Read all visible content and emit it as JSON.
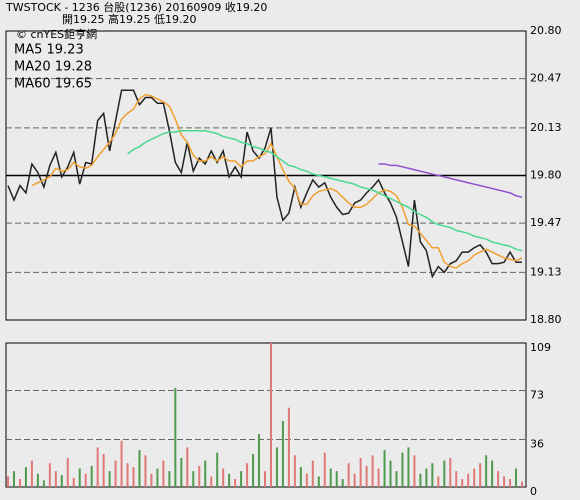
{
  "chart_data": [
    {
      "type": "line",
      "title": "TWSTOCK - 1236 台股(1236) 20160909 收19.20",
      "subtitle": "開19.25 高19.25 低19.20",
      "annotation": "© cnYES鉅亨網",
      "ylim": [
        18.8,
        20.8
      ],
      "yticks": [
        {
          "value": 20.8,
          "label": "20.80"
        },
        20.47,
        20.13,
        {
          "value": 19.8,
          "label": "19.80"
        },
        19.47,
        19.13,
        {
          "value": 18.8,
          "label": "18.80"
        }
      ],
      "solid_grid_tick": 3,
      "series": [
        {
          "color": "#222222",
          "values": [
            19.73,
            19.63,
            19.73,
            19.68,
            19.88,
            19.82,
            19.72,
            19.87,
            19.96,
            19.79,
            19.86,
            19.96,
            19.74,
            19.89,
            19.88,
            20.18,
            20.23,
            19.97,
            20.18,
            20.39,
            20.39,
            20.39,
            20.29,
            20.34,
            20.34,
            20.3,
            20.3,
            20.11,
            19.89,
            19.82,
            20.03,
            19.83,
            19.92,
            19.88,
            19.97,
            19.89,
            19.97,
            19.79,
            19.86,
            19.79,
            20.1,
            19.97,
            19.92,
            19.99,
            20.13,
            19.65,
            19.49,
            19.54,
            19.72,
            19.58,
            19.68,
            19.77,
            19.72,
            19.75,
            19.65,
            19.58,
            19.53,
            19.54,
            19.61,
            19.63,
            19.68,
            19.72,
            19.77,
            19.68,
            19.61,
            19.51,
            19.34,
            19.17,
            19.63,
            19.34,
            19.28,
            19.1,
            19.17,
            19.13,
            19.19,
            19.21,
            19.27,
            19.27,
            19.3,
            19.32,
            19.27,
            19.19,
            19.19,
            19.2,
            19.27,
            19.2,
            19.2
          ]
        },
        {
          "name": "MA5 19.23",
          "color": "#f0a030",
          "values": [
            null,
            null,
            null,
            null,
            19.73,
            19.75,
            19.77,
            19.79,
            19.85,
            19.83,
            19.84,
            19.89,
            19.86,
            19.85,
            19.87,
            19.93,
            19.98,
            20.03,
            20.09,
            20.19,
            20.23,
            20.26,
            20.33,
            20.36,
            20.35,
            20.33,
            20.31,
            20.28,
            20.19,
            20.08,
            20.03,
            19.94,
            19.9,
            19.9,
            19.93,
            19.9,
            19.93,
            19.9,
            19.9,
            19.86,
            19.9,
            19.9,
            19.93,
            19.95,
            20.02,
            19.93,
            19.84,
            19.76,
            19.71,
            19.6,
            19.6,
            19.66,
            19.69,
            19.7,
            19.71,
            19.69,
            19.65,
            19.61,
            19.58,
            19.58,
            19.6,
            19.64,
            19.68,
            19.7,
            19.69,
            19.66,
            19.58,
            19.46,
            19.45,
            19.4,
            19.35,
            19.3,
            19.3,
            19.2,
            19.17,
            19.16,
            19.19,
            19.21,
            19.25,
            19.27,
            19.29,
            19.27,
            19.25,
            19.23,
            19.22,
            19.21,
            19.23
          ]
        },
        {
          "name": "MA20 19.28",
          "color": "#48d890",
          "values": [
            null,
            null,
            null,
            null,
            null,
            null,
            null,
            null,
            null,
            null,
            null,
            null,
            null,
            null,
            null,
            null,
            null,
            null,
            null,
            null,
            19.95,
            19.98,
            20.0,
            20.03,
            20.05,
            20.07,
            20.09,
            20.1,
            20.1,
            20.11,
            20.11,
            20.11,
            20.11,
            20.11,
            20.1,
            20.09,
            20.07,
            20.06,
            20.05,
            20.03,
            20.02,
            20.0,
            19.99,
            19.97,
            19.96,
            19.93,
            19.9,
            19.87,
            19.86,
            19.84,
            19.83,
            19.81,
            19.8,
            19.79,
            19.78,
            19.77,
            19.76,
            19.75,
            19.74,
            19.72,
            19.71,
            19.7,
            19.68,
            19.66,
            19.64,
            19.62,
            19.6,
            19.58,
            19.55,
            19.53,
            19.51,
            19.48,
            19.46,
            19.45,
            19.44,
            19.42,
            19.41,
            19.4,
            19.38,
            19.37,
            19.36,
            19.34,
            19.33,
            19.32,
            19.31,
            19.29,
            19.28
          ]
        },
        {
          "name": "MA60 19.65",
          "color": "#9050d0",
          "values": [
            null,
            null,
            null,
            null,
            null,
            null,
            null,
            null,
            null,
            null,
            null,
            null,
            null,
            null,
            null,
            null,
            null,
            null,
            null,
            null,
            null,
            null,
            null,
            null,
            null,
            null,
            null,
            null,
            null,
            null,
            null,
            null,
            null,
            null,
            null,
            null,
            null,
            null,
            null,
            null,
            null,
            null,
            null,
            null,
            null,
            null,
            null,
            null,
            null,
            null,
            null,
            null,
            null,
            null,
            null,
            null,
            null,
            null,
            null,
            null,
            null,
            null,
            19.88,
            19.88,
            19.87,
            19.87,
            19.86,
            19.85,
            19.84,
            19.83,
            19.82,
            19.81,
            19.8,
            19.79,
            19.78,
            19.77,
            19.76,
            19.75,
            19.74,
            19.73,
            19.72,
            19.71,
            19.7,
            19.69,
            19.68,
            19.66,
            19.65
          ]
        }
      ]
    },
    {
      "type": "bar",
      "ylim": [
        0,
        109
      ],
      "yticks": [
        0,
        36,
        73,
        109
      ],
      "up_color": "#e07878",
      "down_color": "#4f9a4f",
      "values": [
        8,
        12,
        6,
        15,
        20,
        10,
        5,
        18,
        12,
        9,
        22,
        7,
        14,
        10,
        16,
        30,
        25,
        12,
        20,
        35,
        18,
        15,
        28,
        24,
        10,
        14,
        20,
        12,
        75,
        22,
        30,
        12,
        16,
        20,
        8,
        26,
        14,
        10,
        6,
        12,
        18,
        25,
        40,
        12,
        109,
        30,
        50,
        60,
        24,
        15,
        10,
        20,
        8,
        26,
        14,
        12,
        6,
        18,
        10,
        22,
        16,
        24,
        14,
        28,
        20,
        12,
        26,
        30,
        24,
        10,
        14,
        18,
        8,
        20,
        22,
        12,
        6,
        10,
        14,
        18,
        24,
        20,
        12,
        8,
        6,
        14,
        4
      ]
    }
  ]
}
